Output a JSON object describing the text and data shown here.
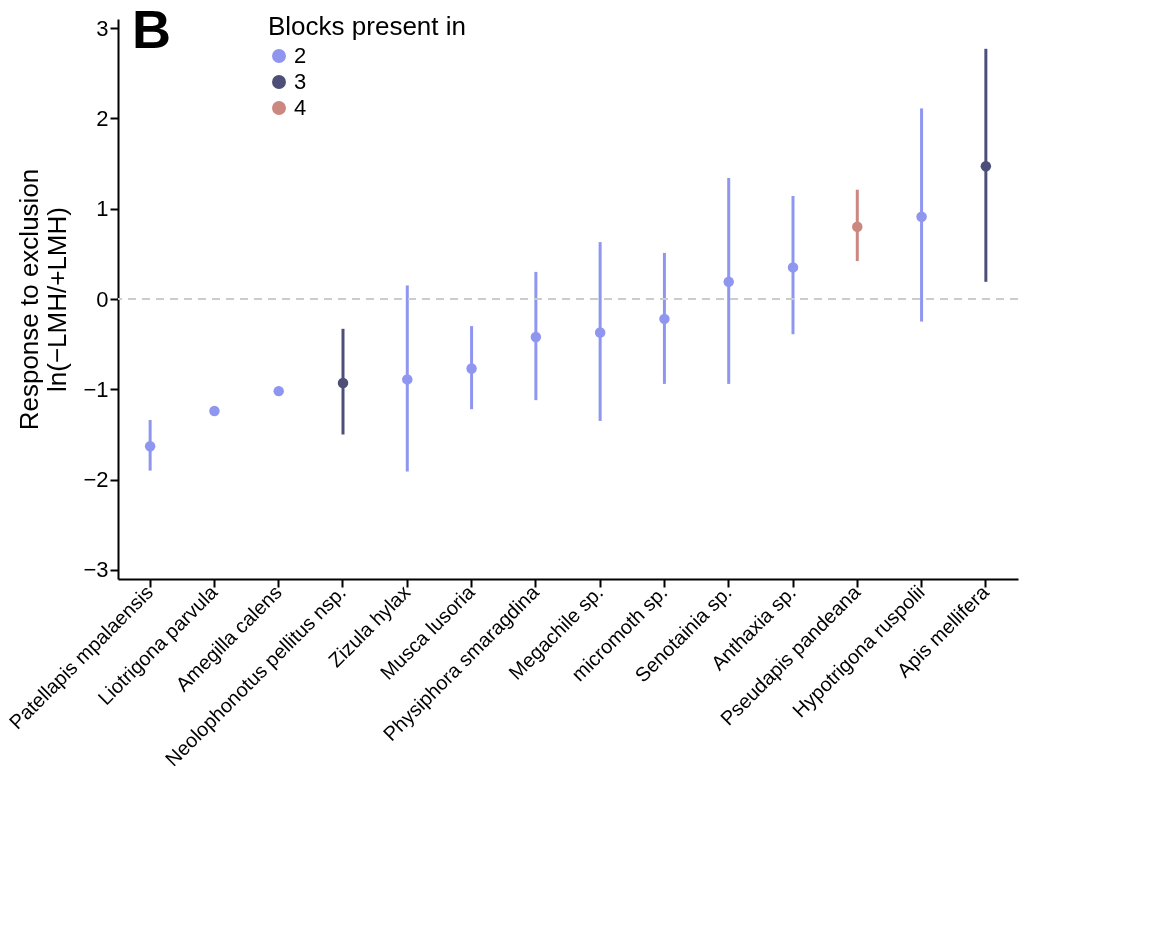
{
  "chart_data": {
    "type": "scatter",
    "ylabel": "Response to exclusion\nln(−LMH/+LMH)",
    "legend_title": "Blocks present in",
    "annotations": [
      "B"
    ],
    "categories": [
      "Patellapis mpalaensis",
      "Liotrigona parvula",
      "Amegilla calens",
      "Neolophonotus pellitus nsp.",
      "Zizula hylax",
      "Musca lusoria",
      "Physiphora smaragdina",
      "Megachile sp.",
      "micromoth sp.",
      "Senotainia sp.",
      "Anthaxia sp.",
      "Pseudapis pandeana",
      "Hypotrigona ruspolii",
      "Apis mellifera"
    ],
    "series": [
      {
        "name": "2",
        "color": "#8f96ef",
        "values": [
          -1.63,
          -1.24,
          -1.02,
          null,
          -0.89,
          -0.77,
          -0.42,
          -0.37,
          -0.22,
          0.19,
          0.35,
          null,
          0.91,
          null
        ],
        "errors": [
          [
            -1.9,
            -1.34
          ],
          null,
          [
            -1.06,
            -0.97
          ],
          null,
          [
            -1.91,
            0.15
          ],
          [
            -1.22,
            -0.3
          ],
          [
            -1.12,
            0.3
          ],
          [
            -1.35,
            0.63
          ],
          [
            -0.94,
            0.51
          ],
          [
            -0.94,
            1.34
          ],
          [
            -0.39,
            1.14
          ],
          null,
          [
            -0.25,
            2.11
          ],
          null
        ]
      },
      {
        "name": "3",
        "color": "#4e4f78",
        "values": [
          null,
          null,
          null,
          -0.93,
          null,
          null,
          null,
          null,
          null,
          null,
          null,
          null,
          null,
          1.47
        ],
        "errors": [
          null,
          null,
          null,
          [
            -1.5,
            -0.33
          ],
          null,
          null,
          null,
          null,
          null,
          null,
          null,
          null,
          null,
          [
            0.19,
            2.77
          ]
        ]
      },
      {
        "name": "4",
        "color": "#cc8880",
        "values": [
          null,
          null,
          null,
          null,
          null,
          null,
          null,
          null,
          null,
          null,
          null,
          0.8,
          null,
          null
        ],
        "errors": [
          null,
          null,
          null,
          null,
          null,
          null,
          null,
          null,
          null,
          null,
          null,
          [
            0.42,
            1.21
          ],
          null,
          null
        ]
      }
    ],
    "ylim": [
      -3.1,
      3.1
    ],
    "yticks": [
      {
        "value": -3,
        "label": "−3"
      },
      {
        "value": -2,
        "label": "−2"
      },
      {
        "value": -1,
        "label": "−1"
      },
      0,
      1,
      2,
      3
    ],
    "ref_lines": [
      {
        "axis": "y",
        "value": 0,
        "label": null,
        "color": "#cccccc",
        "line_style": "dashed"
      }
    ],
    "grid": false,
    "legend": "top left",
    "marker": "circle"
  }
}
